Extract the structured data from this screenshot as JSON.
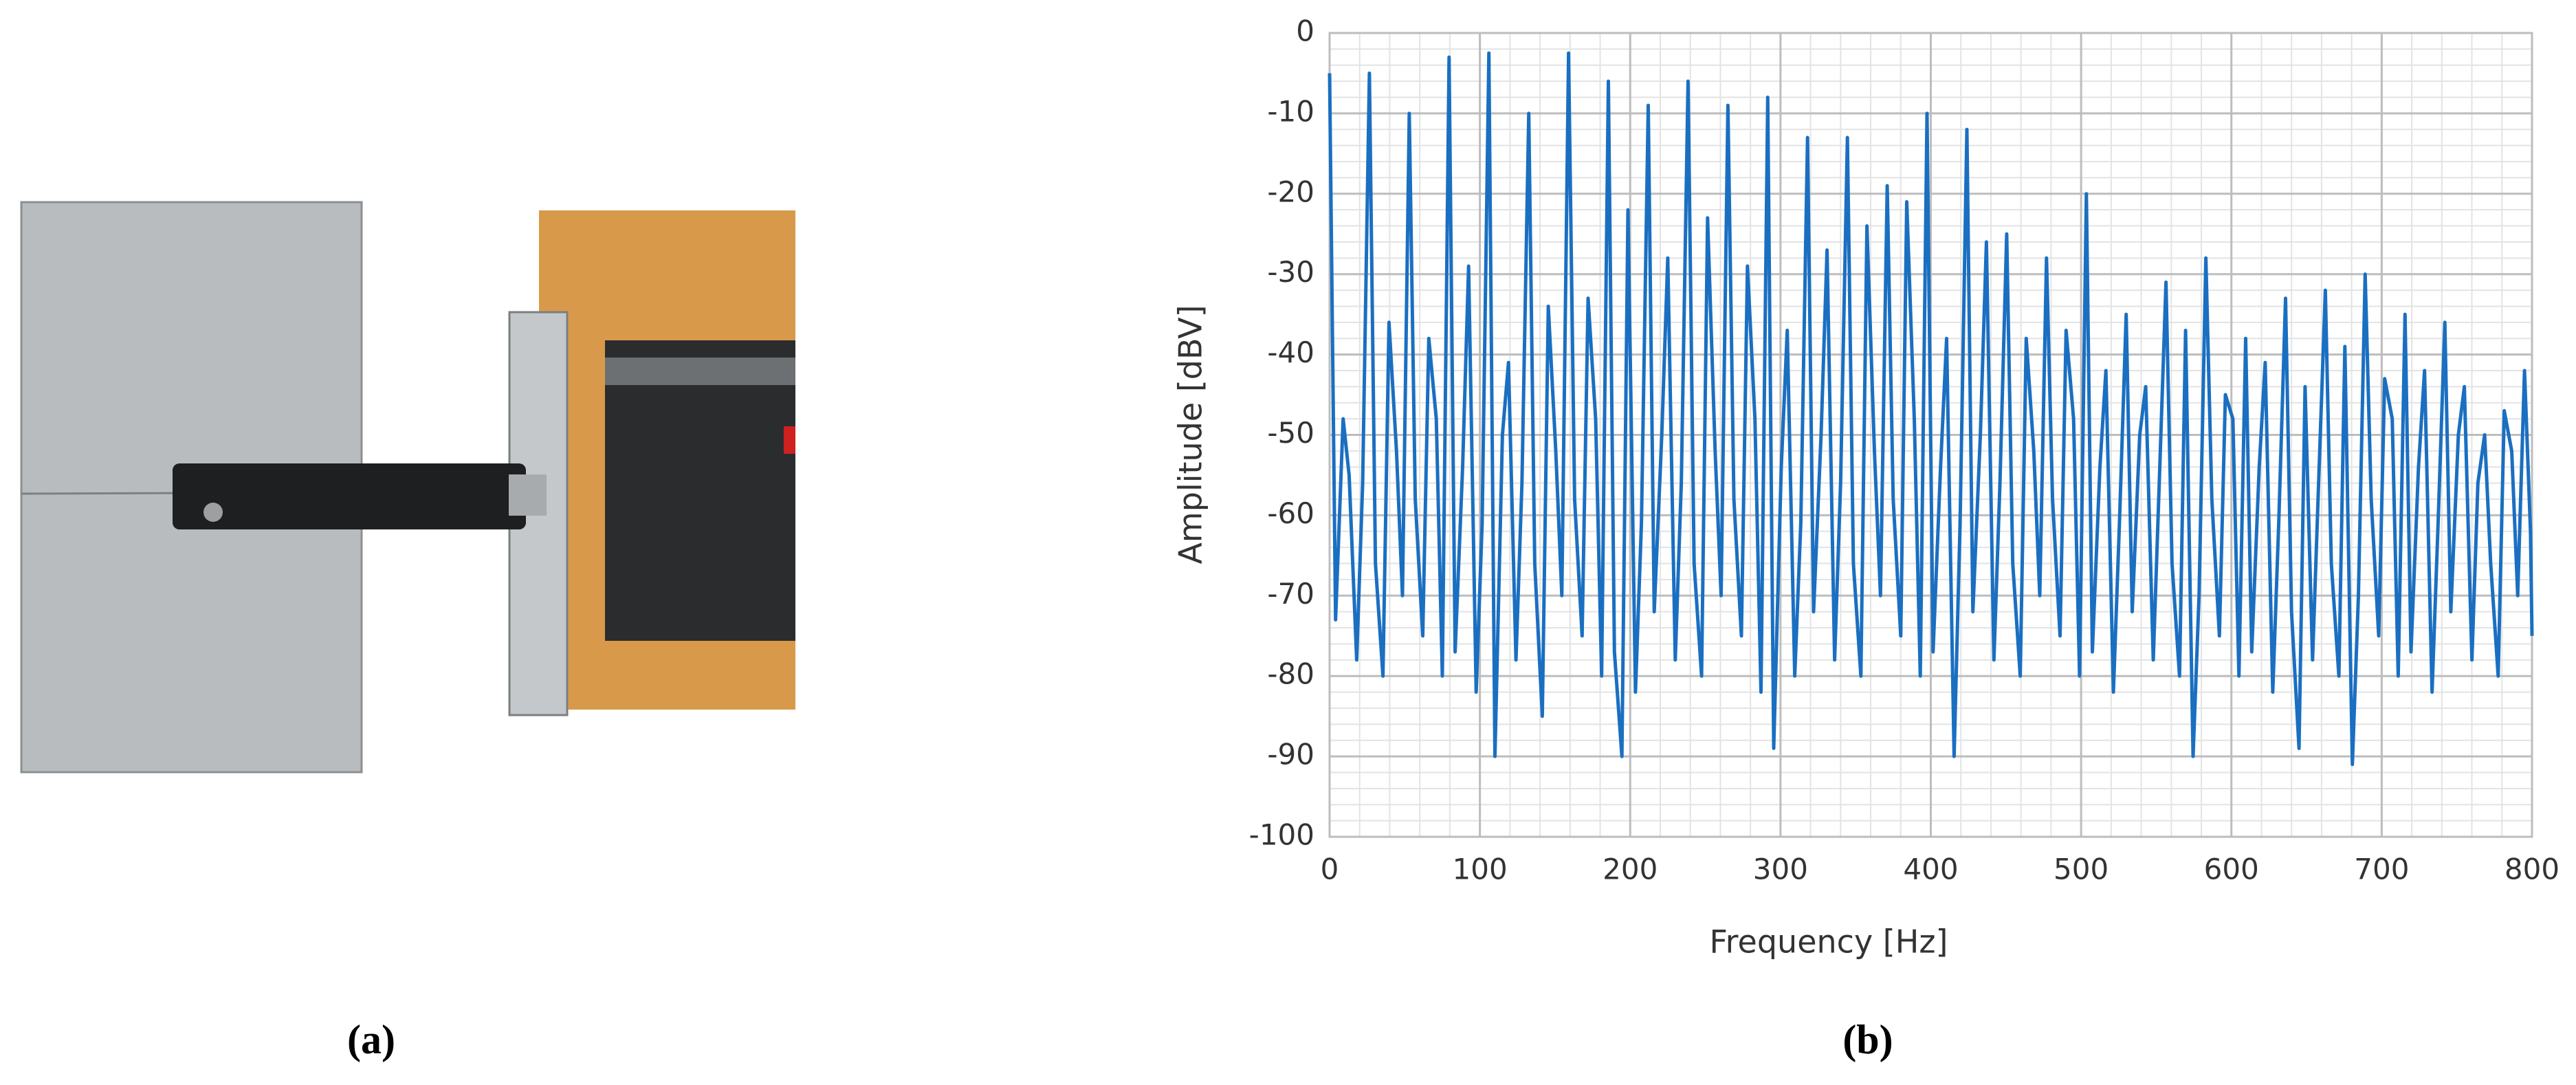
{
  "captions": [
    "(a)",
    "(b)"
  ],
  "chart_data": {
    "type": "line",
    "x_label": "Frequency [Hz]",
    "y_label": "Amplitude [dBV]",
    "xlim": [
      0,
      800
    ],
    "xticks": [
      0,
      100,
      200,
      300,
      400,
      500,
      600,
      700,
      800
    ],
    "ylim": [
      -100,
      0
    ],
    "yticks": [
      0,
      -10,
      -20,
      -30,
      -40,
      -50,
      -60,
      -70,
      -80,
      -90,
      -100
    ],
    "grid": true,
    "minor_grid": true,
    "color": "#1a6fc1",
    "x": [
      0,
      4,
      9,
      13,
      18,
      22,
      26.5,
      30.5,
      35.5,
      39.5,
      44.5,
      48.5,
      53,
      57,
      62,
      66,
      71,
      75,
      79.5,
      83.5,
      88.5,
      92.5,
      97.5,
      101.5,
      106,
      110,
      115,
      119,
      124,
      128,
      132.5,
      136.5,
      141.5,
      145.5,
      150.5,
      154.5,
      159,
      163,
      168,
      172,
      177,
      181,
      185.5,
      189.5,
      194.5,
      198.5,
      203.5,
      207.5,
      212,
      216,
      221,
      225,
      230,
      234,
      238.5,
      242.5,
      247.5,
      251.5,
      256.5,
      260.5,
      265,
      269,
      274,
      278,
      283,
      287,
      291.5,
      295.5,
      300.5,
      304.5,
      309.5,
      313.5,
      318,
      322,
      327,
      331,
      336,
      340,
      344.5,
      348.5,
      353.5,
      357.5,
      362.5,
      366.5,
      371,
      375,
      380,
      384,
      389,
      393,
      397.5,
      401.5,
      406.5,
      410.5,
      415.5,
      419.5,
      424,
      428,
      433,
      437,
      442,
      446,
      450.5,
      454.5,
      459.5,
      463.5,
      468.5,
      472.5,
      477,
      481,
      486,
      490,
      495,
      499,
      503.5,
      507.5,
      512.5,
      516.5,
      521.5,
      525.5,
      530,
      534,
      539,
      543,
      548,
      552,
      556.5,
      560.5,
      565.5,
      569.5,
      574.5,
      578.5,
      583,
      587,
      592,
      596,
      601,
      605,
      609.5,
      613.5,
      618.5,
      622.5,
      627.5,
      631.5,
      636,
      640,
      645,
      649,
      654,
      658,
      662.5,
      666.5,
      671.5,
      675.5,
      680.5,
      684.5,
      689,
      693,
      698,
      702,
      707,
      711,
      715.5,
      719.5,
      724.5,
      728.5,
      733.5,
      737.5,
      742,
      746,
      751,
      755,
      760,
      764,
      768.5,
      772.5,
      777.5,
      781.5,
      786.5,
      790.5,
      795,
      799,
      800
    ],
    "values": [
      -5,
      -73,
      -48,
      -55,
      -78,
      -56,
      -5,
      -66,
      -80,
      -36,
      -52,
      -70,
      -10,
      -58,
      -75,
      -38,
      -48,
      -80,
      -3,
      -77,
      -54,
      -29,
      -82,
      -61,
      -2.5,
      -90,
      -50,
      -41,
      -78,
      -56,
      -10,
      -66,
      -85,
      -34,
      -52,
      -70,
      -2.5,
      -58,
      -75,
      -33,
      -48,
      -80,
      -6,
      -77,
      -90,
      -22,
      -82,
      -61,
      -9,
      -72,
      -50,
      -28,
      -78,
      -56,
      -6,
      -66,
      -80,
      -23,
      -52,
      -70,
      -9,
      -58,
      -75,
      -29,
      -48,
      -82,
      -8,
      -89,
      -54,
      -37,
      -80,
      -61,
      -13,
      -72,
      -50,
      -27,
      -78,
      -56,
      -13,
      -66,
      -80,
      -24,
      -52,
      -70,
      -19,
      -58,
      -75,
      -21,
      -48,
      -80,
      -10,
      -77,
      -54,
      -38,
      -90,
      -61,
      -12,
      -72,
      -50,
      -26,
      -78,
      -56,
      -25,
      -66,
      -80,
      -38,
      -52,
      -70,
      -28,
      -58,
      -75,
      -37,
      -48,
      -80,
      -20,
      -77,
      -54,
      -42,
      -82,
      -61,
      -35,
      -72,
      -50,
      -44,
      -78,
      -56,
      -31,
      -66,
      -80,
      -37,
      -90,
      -70,
      -28,
      -58,
      -75,
      -45,
      -48,
      -80,
      -38,
      -77,
      -54,
      -41,
      -82,
      -61,
      -33,
      -72,
      -89,
      -44,
      -78,
      -56,
      -32,
      -66,
      -80,
      -39,
      -91,
      -70,
      -30,
      -58,
      -75,
      -43,
      -48,
      -80,
      -35,
      -77,
      -54,
      -42,
      -82,
      -61,
      -36,
      -72,
      -50,
      -44,
      -78,
      -56,
      -50,
      -66,
      -80,
      -47,
      -52,
      -70,
      -42,
      -62,
      -75
    ]
  }
}
